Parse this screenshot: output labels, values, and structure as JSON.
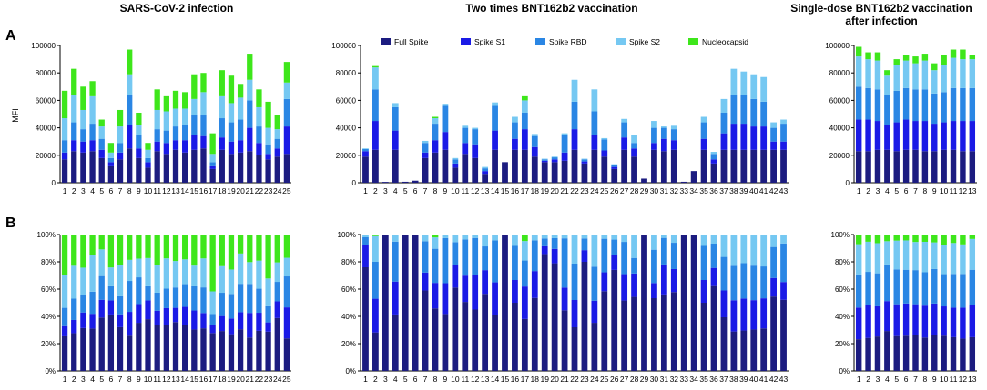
{
  "figure": {
    "panel_labels": [
      "A",
      "B"
    ],
    "column_titles": [
      "SARS-CoV-2 infection",
      "Two times BNT162b2 vaccination",
      "Single-dose BNT162b2 vaccination after infection"
    ],
    "title_line_1": "Single-dose BNT162b2 vaccination",
    "title_line_2": "after infection",
    "ylabel_top": "MFI"
  },
  "legend": {
    "items": [
      {
        "name": "Full Spike",
        "color": "#1c1c80"
      },
      {
        "name": "Spike S1",
        "color": "#1a1ae6"
      },
      {
        "name": "Spike RBD",
        "color": "#2a86e4"
      },
      {
        "name": "Spike S2",
        "color": "#75c8f2"
      },
      {
        "name": "Nucleocapsid",
        "color": "#3ee61b"
      }
    ]
  },
  "chart_data": [
    {
      "type": "bar",
      "stacked": true,
      "panel": "A",
      "title": "SARS-CoV-2 infection",
      "ylabel": "MFI",
      "ylim": [
        0,
        100000
      ],
      "yticks": [
        0,
        20000,
        40000,
        60000,
        80000,
        100000
      ],
      "categories": [
        "1",
        "2",
        "3",
        "4",
        "5",
        "6",
        "7",
        "8",
        "9",
        "10",
        "11",
        "12",
        "13",
        "14",
        "15",
        "16",
        "17",
        "18",
        "19",
        "20",
        "21",
        "22",
        "23",
        "24",
        "25"
      ],
      "series": [
        {
          "name": "Full Spike",
          "values": [
            17000,
            23000,
            22000,
            23000,
            18000,
            12000,
            17000,
            25000,
            18000,
            11000,
            23000,
            21000,
            24000,
            22000,
            24000,
            25000,
            10000,
            24000,
            21000,
            22000,
            23000,
            20000,
            17000,
            19000,
            21000
          ]
        },
        {
          "name": "Spike S1",
          "values": [
            5000,
            8000,
            8000,
            8000,
            6000,
            3000,
            5000,
            17000,
            7000,
            4000,
            7000,
            8000,
            7000,
            9000,
            11000,
            9000,
            2000,
            9000,
            9000,
            9000,
            17000,
            9000,
            4000,
            6000,
            20000
          ]
        },
        {
          "name": "Spike RBD",
          "values": [
            9000,
            13000,
            9000,
            12000,
            8000,
            3000,
            7000,
            22000,
            10000,
            3000,
            9000,
            9000,
            10000,
            11000,
            14000,
            15000,
            3000,
            14000,
            14000,
            15000,
            20000,
            12000,
            7000,
            7000,
            20000
          ]
        },
        {
          "name": "Spike S2",
          "values": [
            16000,
            20000,
            14000,
            20000,
            9000,
            4000,
            12000,
            15000,
            7000,
            6000,
            14000,
            14000,
            13000,
            12000,
            12000,
            17000,
            6000,
            16000,
            14000,
            16000,
            15000,
            14000,
            12000,
            7000,
            12000
          ]
        },
        {
          "name": "Nucleocapsid",
          "values": [
            20000,
            19000,
            17000,
            11000,
            5000,
            7000,
            12000,
            18000,
            9000,
            5000,
            15000,
            11000,
            13000,
            12000,
            18000,
            14000,
            15000,
            19000,
            20000,
            10000,
            19000,
            13000,
            19000,
            10000,
            15000
          ]
        }
      ]
    },
    {
      "type": "bar",
      "stacked": true,
      "panel": "A",
      "title": "Two times BNT162b2 vaccination",
      "ylabel": "",
      "ylim": [
        0,
        100000
      ],
      "yticks": [
        0,
        20000,
        40000,
        60000,
        80000,
        100000
      ],
      "categories": [
        "1",
        "2",
        "3",
        "4",
        "5",
        "6",
        "7",
        "8",
        "9",
        "10",
        "11",
        "12",
        "13",
        "14",
        "15",
        "16",
        "17",
        "18",
        "19",
        "20",
        "21",
        "22",
        "23",
        "24",
        "25",
        "26",
        "27",
        "28",
        "29",
        "30",
        "31",
        "32",
        "33",
        "34",
        "35",
        "36",
        "37",
        "38",
        "39",
        "40",
        "41",
        "42",
        "43"
      ],
      "series": [
        {
          "name": "Full Spike",
          "values": [
            19000,
            24000,
            600,
            24000,
            700,
            1500,
            18000,
            22000,
            24000,
            11000,
            21000,
            18000,
            6500,
            24000,
            15000,
            24000,
            24000,
            19000,
            15000,
            15000,
            16000,
            24000,
            14000,
            24000,
            19000,
            10000,
            24000,
            19000,
            3000,
            24000,
            23000,
            24000,
            700,
            8500,
            24000,
            14000,
            24000,
            24000,
            24000,
            24000,
            24000,
            24000,
            24000
          ]
        },
        {
          "name": "Spike S1",
          "values": [
            4000,
            21000,
            0,
            14000,
            0,
            0,
            4000,
            9000,
            13000,
            3000,
            8000,
            10000,
            2000,
            14000,
            0,
            8000,
            15000,
            7000,
            1000,
            2000,
            6000,
            15000,
            1500,
            11000,
            4500,
            1500,
            9000,
            6000,
            0,
            5000,
            9000,
            7000,
            0,
            0,
            8000,
            3000,
            12000,
            19000,
            19000,
            17000,
            17000,
            6000,
            6000
          ]
        },
        {
          "name": "Spike RBD",
          "values": [
            1500,
            23000,
            0,
            17000,
            0,
            0,
            7000,
            12000,
            19000,
            3000,
            11000,
            11000,
            2000,
            18000,
            0,
            12000,
            12000,
            8000,
            1000,
            1500,
            13000,
            20000,
            1500,
            17000,
            8000,
            1500,
            11000,
            4000,
            0,
            11000,
            8000,
            8000,
            0,
            0,
            12000,
            4000,
            15000,
            21000,
            21000,
            20000,
            18000,
            10000,
            13000
          ]
        },
        {
          "name": "Spike S2",
          "values": [
            500,
            16000,
            0,
            3000,
            0,
            0,
            1500,
            4000,
            1500,
            1000,
            1500,
            1000,
            1000,
            2500,
            0,
            4000,
            9000,
            1500,
            500,
            500,
            1000,
            16000,
            500,
            16000,
            1000,
            500,
            2500,
            6000,
            0,
            5000,
            1000,
            2500,
            0,
            0,
            4000,
            1500,
            10000,
            19000,
            17000,
            18000,
            18000,
            4000,
            3000
          ]
        },
        {
          "name": "Nucleocapsid",
          "values": [
            0,
            1000,
            0,
            0,
            0,
            0,
            0,
            1000,
            0,
            0,
            0,
            0,
            0,
            0,
            0,
            0,
            3000,
            0,
            0,
            0,
            0,
            0,
            0,
            0,
            0,
            0,
            0,
            0,
            0,
            0,
            0,
            0,
            0,
            0,
            0,
            0,
            0,
            0,
            0,
            0,
            0,
            0,
            0
          ]
        }
      ]
    },
    {
      "type": "bar",
      "stacked": true,
      "panel": "A",
      "title": "Single-dose BNT162b2 vaccination after infection",
      "ylabel": "",
      "ylim": [
        0,
        100000
      ],
      "yticks": [
        0,
        20000,
        40000,
        60000,
        80000,
        100000
      ],
      "categories": [
        "1",
        "2",
        "3",
        "4",
        "5",
        "6",
        "7",
        "8",
        "9",
        "10",
        "11",
        "12",
        "13"
      ],
      "series": [
        {
          "name": "Full Spike",
          "values": [
            23000,
            23000,
            24000,
            24000,
            23000,
            24000,
            24000,
            23000,
            23000,
            24000,
            24000,
            23000,
            23000
          ]
        },
        {
          "name": "Spike S1",
          "values": [
            23000,
            23000,
            21000,
            18000,
            21000,
            22000,
            21000,
            22000,
            20000,
            20000,
            21000,
            22000,
            22000
          ]
        },
        {
          "name": "Spike RBD",
          "values": [
            24000,
            23000,
            23000,
            22000,
            23000,
            23000,
            23000,
            23000,
            22000,
            22000,
            24000,
            24000,
            24000
          ]
        },
        {
          "name": "Spike S2",
          "values": [
            22000,
            21000,
            21000,
            14000,
            19000,
            20000,
            19000,
            21000,
            17000,
            20000,
            22000,
            21000,
            21000
          ]
        },
        {
          "name": "Nucleocapsid",
          "values": [
            7000,
            5000,
            6000,
            4000,
            4000,
            4000,
            5000,
            5000,
            5000,
            7000,
            6000,
            7000,
            3000
          ]
        }
      ]
    },
    {
      "type": "bar",
      "stacked": true,
      "normalized": true,
      "panel": "B",
      "title": "SARS-CoV-2 infection",
      "ylabel": "",
      "ylim": [
        0,
        100
      ],
      "yticks": [
        0,
        20,
        40,
        60,
        80,
        100
      ],
      "categories": [
        "1",
        "2",
        "3",
        "4",
        "5",
        "6",
        "7",
        "8",
        "9",
        "10",
        "11",
        "12",
        "13",
        "14",
        "15",
        "16",
        "17",
        "18",
        "19",
        "20",
        "21",
        "22",
        "23",
        "24",
        "25"
      ],
      "series_source": "Panel A values normalized to 100% per bar"
    },
    {
      "type": "bar",
      "stacked": true,
      "normalized": true,
      "panel": "B",
      "title": "Two times BNT162b2 vaccination",
      "ylabel": "",
      "ylim": [
        0,
        100
      ],
      "yticks": [
        0,
        20,
        40,
        60,
        80,
        100
      ],
      "categories": [
        "1",
        "2",
        "3",
        "4",
        "5",
        "6",
        "7",
        "8",
        "9",
        "10",
        "11",
        "12",
        "13",
        "14",
        "15",
        "16",
        "17",
        "18",
        "19",
        "20",
        "21",
        "22",
        "23",
        "24",
        "25",
        "26",
        "27",
        "28",
        "29",
        "30",
        "31",
        "32",
        "33",
        "34",
        "35",
        "36",
        "37",
        "38",
        "39",
        "40",
        "41",
        "42",
        "43"
      ],
      "series_source": "Panel A values normalized to 100% per bar"
    },
    {
      "type": "bar",
      "stacked": true,
      "normalized": true,
      "panel": "B",
      "title": "Single-dose BNT162b2 vaccination after infection",
      "ylabel": "",
      "ylim": [
        0,
        100
      ],
      "yticks": [
        0,
        20,
        40,
        60,
        80,
        100
      ],
      "categories": [
        "1",
        "2",
        "3",
        "4",
        "5",
        "6",
        "7",
        "8",
        "9",
        "10",
        "11",
        "12",
        "13"
      ],
      "series_source": "Panel A values normalized to 100% per bar"
    }
  ]
}
